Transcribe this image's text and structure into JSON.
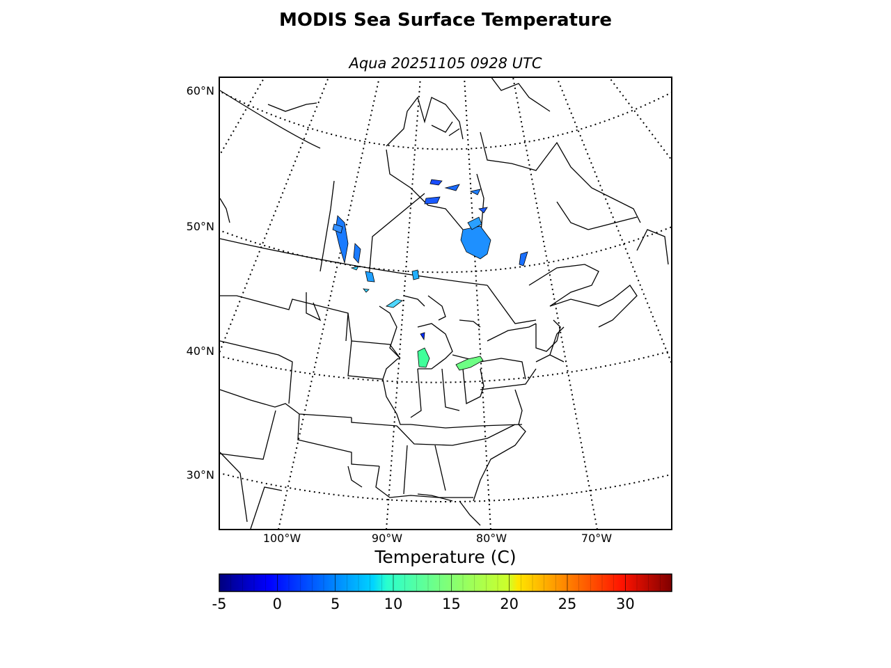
{
  "title": "MODIS Sea Surface Temperature",
  "subtitle": "Aqua 20251105 0928 UTC",
  "lat_labels": [
    "60°N",
    "50°N",
    "40°N",
    "30°N"
  ],
  "lon_labels": [
    "100°W",
    "90°W",
    "80°W",
    "70°W"
  ],
  "colorbar": {
    "title": "Temperature (C)",
    "min": -5,
    "max": 34,
    "ticks": [
      "-5",
      "0",
      "5",
      "10",
      "15",
      "20",
      "25",
      "30"
    ],
    "colormap": "jet"
  },
  "colors": {
    "land_outline": "#000000",
    "background": "#ffffff"
  }
}
